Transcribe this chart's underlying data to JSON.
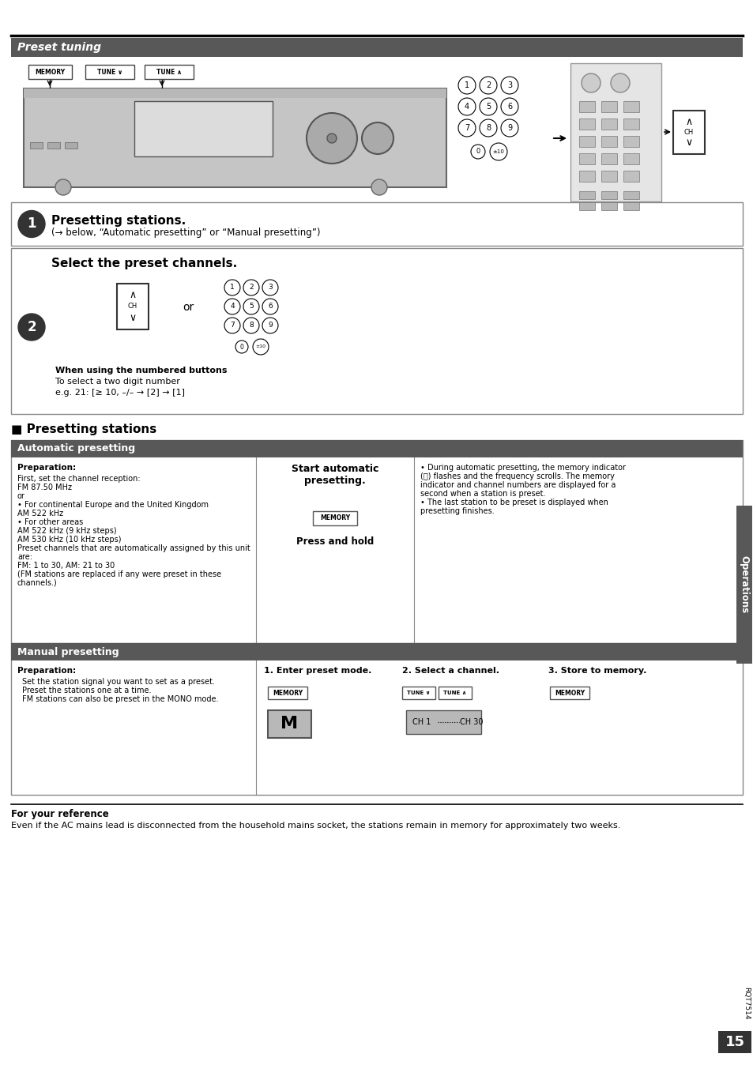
{
  "title": "Preset tuning",
  "title_bg": "#585858",
  "title_text_color": "#ffffff",
  "page_bg": "#ffffff",
  "page_number": "15",
  "rqt_text": "RQT7514",
  "section_presetting_stations": "Presetting stations",
  "section_automatic": "Automatic presetting",
  "section_manual": "Manual presetting",
  "step1_title": "Presetting stations.",
  "step1_sub": "(→ below, “Automatic presetting” or “Manual presetting”)",
  "step2_title": "Select the preset channels.",
  "step2_or": "or",
  "step2_note_bold": "When using the numbered buttons",
  "step2_note1": "To select a two digit number",
  "step2_note2": "e.g. 21: [≥ 10, –/– → [2] → [1]",
  "auto_prep_title": "Preparation:",
  "auto_prep_lines": [
    "First, set the channel reception:",
    "FM 87.50 MHz",
    "or",
    "• For continental Europe and the United Kingdom",
    "AM 522 kHz",
    "• For other areas",
    "AM 522 kHz (9 kHz steps)",
    "AM 530 kHz (10 kHz steps)",
    "Preset channels that are automatically assigned by this unit",
    "are:",
    "FM: 1 to 30, AM: 21 to 30",
    "(FM stations are replaced if any were preset in these",
    "channels.)"
  ],
  "auto_start_title": "Start automatic\npresetting.",
  "auto_press": "Press and hold",
  "auto_bullet_lines": [
    "• During automatic presetting, the memory indicator",
    "(ⓜ) flashes and the frequency scrolls. The memory",
    "indicator and channel numbers are displayed for a",
    "second when a station is preset.",
    "• The last station to be preset is displayed when",
    "presetting finishes."
  ],
  "manual_prep_title": "Preparation:",
  "manual_prep_lines": [
    "Set the station signal you want to set as a preset.",
    "Preset the stations one at a time.",
    "FM stations can also be preset in the MONO mode."
  ],
  "manual_step1": "1. Enter preset mode.",
  "manual_step2": "2. Select a channel.",
  "manual_step3": "3. Store to memory.",
  "for_ref_title": "For your reference",
  "for_ref_text": "Even if the AC mains lead is disconnected from the household mains socket, the stations remain in memory for approximately two weeks.",
  "sidebar_text": "Operations",
  "header_line": "#000000",
  "box_border": "#888888",
  "dark_bg": "#585858",
  "light_gray": "#d8d8d8",
  "mid_gray": "#b0b0b0"
}
